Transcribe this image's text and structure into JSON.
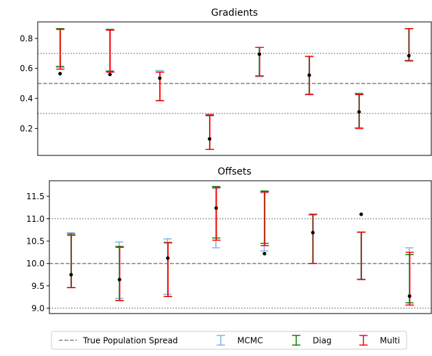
{
  "chart_data": [
    {
      "type": "errorbar",
      "title": "Gradients",
      "ylim": [
        0.02,
        0.91
      ],
      "yticks": [
        0.2,
        0.4,
        0.6,
        0.8
      ],
      "ytick_labels": [
        "0.2",
        "0.4",
        "0.6",
        "0.8"
      ],
      "x": [
        1,
        2,
        3,
        4,
        5,
        6,
        7,
        8
      ],
      "xlim": [
        0.55,
        8.45
      ],
      "reference_lines": {
        "true_mean": 0.5,
        "spread": [
          0.3,
          0.7
        ]
      },
      "true_values": [
        0.565,
        0.56,
        0.535,
        0.13,
        0.695,
        0.555,
        0.31,
        0.685
      ],
      "series": [
        {
          "name": "MCMC",
          "color": "#7fb2dd",
          "low": [
            0.615,
            0.585,
            0.585,
            0.295,
            0.545,
            0.43,
            0.205,
            0.655
          ],
          "high": [
            0.865,
            0.855,
            0.585,
            0.295,
            0.74,
            0.68,
            0.435,
            0.865
          ]
        },
        {
          "name": "Diag",
          "color": "#008000",
          "low": [
            0.61,
            0.58,
            0.385,
            0.06,
            0.55,
            0.425,
            0.2,
            0.65
          ],
          "high": [
            0.865,
            0.86,
            0.575,
            0.285,
            0.74,
            0.68,
            0.43,
            0.865
          ]
        },
        {
          "name": "Multi",
          "color": "#ff0000",
          "low": [
            0.595,
            0.575,
            0.385,
            0.06,
            0.55,
            0.425,
            0.2,
            0.65
          ],
          "high": [
            0.86,
            0.855,
            0.575,
            0.29,
            0.74,
            0.68,
            0.425,
            0.865
          ]
        }
      ]
    },
    {
      "type": "errorbar",
      "title": "Offsets",
      "ylim": [
        8.88,
        11.85
      ],
      "yticks": [
        9.0,
        9.5,
        10.0,
        10.5,
        11.0,
        11.5
      ],
      "ytick_labels": [
        "9.0",
        "9.5",
        "10.0",
        "10.5",
        "11.0",
        "11.5"
      ],
      "x": [
        1,
        2,
        3,
        4,
        5,
        6,
        7,
        8
      ],
      "xlim": [
        0.55,
        8.45
      ],
      "reference_lines": {
        "true_mean": 10.0,
        "spread": [
          9.0,
          11.0
        ]
      },
      "true_values": [
        9.75,
        9.64,
        10.12,
        11.24,
        10.22,
        10.69,
        11.1,
        9.27
      ],
      "series": [
        {
          "name": "MCMC",
          "color": "#7fb2dd",
          "low": [
            9.46,
            9.22,
            9.31,
            10.35,
            10.28,
            10.0,
            9.65,
            9.07
          ],
          "high": [
            10.69,
            10.48,
            10.55,
            11.68,
            11.58,
            11.08,
            10.7,
            10.35
          ]
        },
        {
          "name": "Diag",
          "color": "#008000",
          "low": [
            9.46,
            9.17,
            9.26,
            10.57,
            10.45,
            10.0,
            9.64,
            9.12
          ],
          "high": [
            10.66,
            10.38,
            10.47,
            11.72,
            11.62,
            11.1,
            10.7,
            10.2
          ]
        },
        {
          "name": "Multi",
          "color": "#ff0000",
          "low": [
            9.46,
            9.17,
            9.26,
            10.52,
            10.4,
            10.0,
            9.64,
            9.07
          ],
          "high": [
            10.63,
            10.36,
            10.46,
            11.7,
            11.6,
            11.1,
            10.7,
            10.25
          ]
        }
      ]
    }
  ],
  "legend": {
    "placement": "bottom-center",
    "entries": [
      {
        "label": "True Population Spread",
        "kind": "dashed-line",
        "color": "#808080"
      },
      {
        "label": "MCMC",
        "kind": "errorbar",
        "color": "#7fb2dd"
      },
      {
        "label": "Diag",
        "kind": "errorbar",
        "color": "#008000"
      },
      {
        "label": "Multi",
        "kind": "errorbar",
        "color": "#ff0000"
      }
    ]
  },
  "styles": {
    "true_value_color": "#000000",
    "reference_line_color": "#808080"
  }
}
